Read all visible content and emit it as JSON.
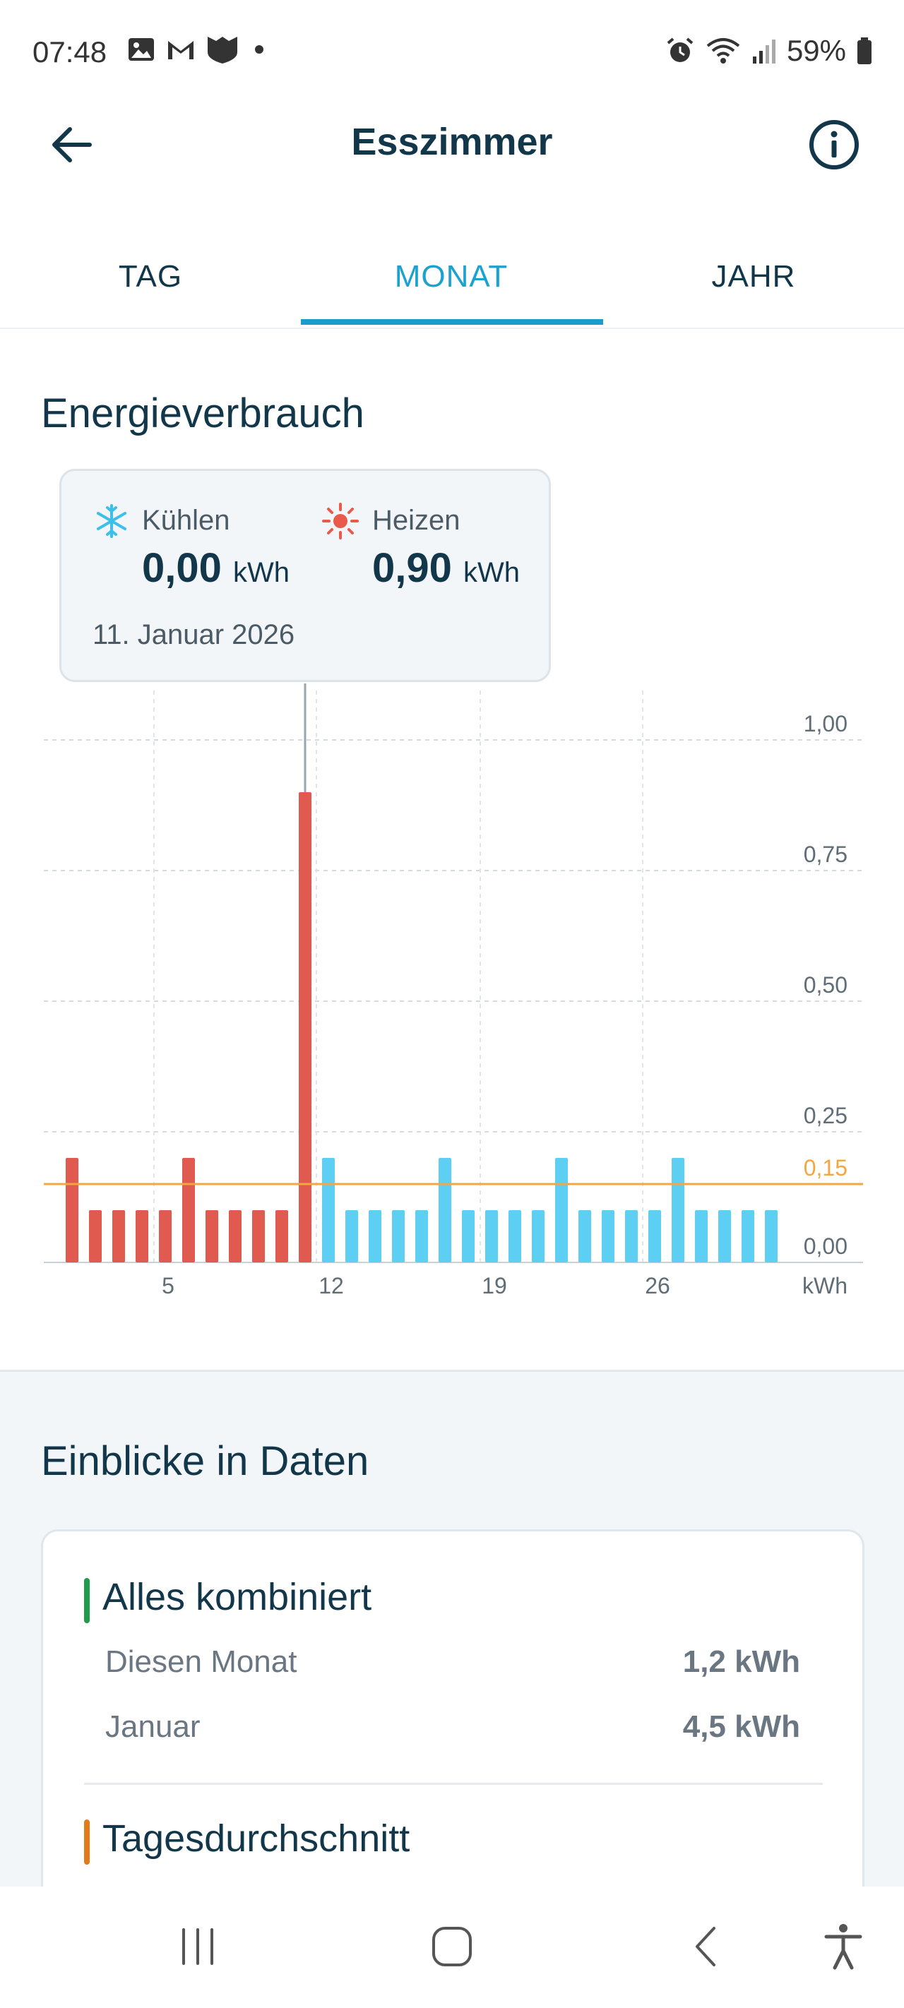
{
  "status_bar": {
    "time": "07:48",
    "battery": "59%",
    "icons_left": [
      "image-icon",
      "gmail-icon",
      "shield-app-icon",
      "dot-icon"
    ],
    "icons_right": [
      "alarm-icon",
      "wifi-icon",
      "signal-icon",
      "battery-icon"
    ]
  },
  "header": {
    "title": "Esszimmer"
  },
  "tabs": [
    {
      "label": "TAG",
      "active": false
    },
    {
      "label": "MONAT",
      "active": true
    },
    {
      "label": "JAHR",
      "active": false
    }
  ],
  "energy": {
    "title": "Energieverbrauch",
    "tooltip": {
      "cooling_label": "Kühlen",
      "cooling_value": "0,00",
      "heating_label": "Heizen",
      "heating_value": "0,90",
      "unit": "kWh",
      "date": "11. Januar 2026"
    }
  },
  "chart_data": {
    "type": "bar",
    "x": [
      1,
      2,
      3,
      4,
      5,
      6,
      7,
      8,
      9,
      10,
      11,
      12,
      13,
      14,
      15,
      16,
      17,
      18,
      19,
      20,
      21,
      22,
      23,
      24,
      25,
      26,
      27,
      28,
      29,
      30,
      31
    ],
    "series": [
      {
        "name": "Heizen",
        "color": "#e05a4f",
        "x": [
          1,
          2,
          3,
          4,
          5,
          6,
          7,
          8,
          9,
          10,
          11
        ],
        "values": [
          0.2,
          0.1,
          0.1,
          0.1,
          0.1,
          0.2,
          0.1,
          0.1,
          0.1,
          0.1,
          0.9
        ]
      },
      {
        "name": "Kühlen",
        "color": "#5dcff3",
        "x": [
          12,
          13,
          14,
          15,
          16,
          17,
          18,
          19,
          20,
          21,
          22,
          23,
          24,
          25,
          26,
          27,
          28,
          29,
          30,
          31
        ],
        "values": [
          0.2,
          0.1,
          0.1,
          0.1,
          0.1,
          0.2,
          0.1,
          0.1,
          0.1,
          0.1,
          0.2,
          0.1,
          0.1,
          0.1,
          0.1,
          0.2,
          0.1,
          0.1,
          0.1,
          0.1
        ]
      }
    ],
    "x_tick_labels": [
      {
        "x": 5,
        "label": "5"
      },
      {
        "x": 12,
        "label": "12"
      },
      {
        "x": 19,
        "label": "19"
      },
      {
        "x": 26,
        "label": "26"
      }
    ],
    "y_ticks": [
      {
        "value": 0,
        "label": "0,00"
      },
      {
        "value": 0.25,
        "label": "0,25"
      },
      {
        "value": 0.5,
        "label": "0,50"
      },
      {
        "value": 0.75,
        "label": "0,75"
      },
      {
        "value": 1.0,
        "label": "1,00"
      }
    ],
    "ylim": [
      0,
      1.0
    ],
    "ylabel": "kWh",
    "reference_line": {
      "value": 0.15,
      "label": "0,15",
      "color": "#f4a640"
    },
    "highlighted_x": 11,
    "grid": true
  },
  "insights": {
    "title": "Einblicke in Daten",
    "combined_title": "Alles kombiniert",
    "rows": [
      {
        "label": "Diesen Monat",
        "value": "1,2 kWh"
      },
      {
        "label": "Januar",
        "value": "4,5 kWh"
      }
    ],
    "daily_title": "Tagesdurchschnitt"
  }
}
